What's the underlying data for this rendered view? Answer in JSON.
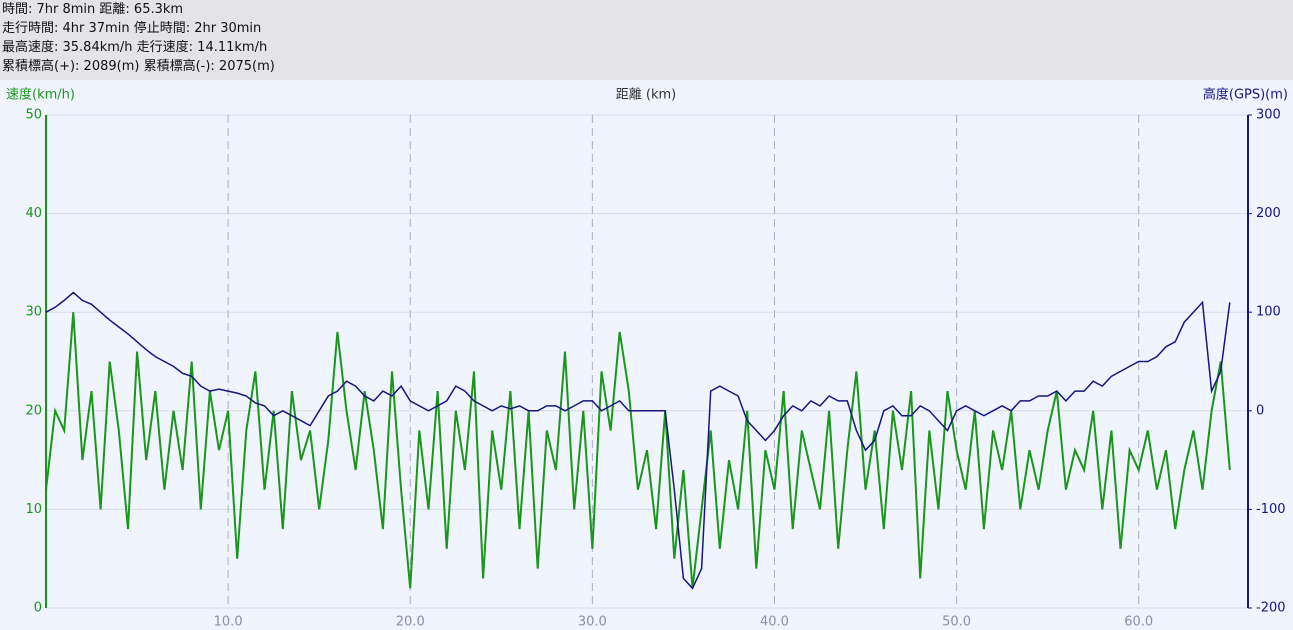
{
  "summary": [
    "時間: 7hr 8min 距離: 65.3km",
    "走行時間: 4hr 37min 停止時間: 2hr 30min",
    "最高速度: 35.84km/h 走行速度: 14.11km/h",
    "累積標高(+): 2089(m) 累積標高(-): 2075(m)"
  ],
  "chart_data": {
    "type": "line",
    "xlabel": "距離 (km)",
    "ylabel": "速度(km/h)",
    "y2label": "高度(GPS)(m)",
    "xlim": [
      0,
      66
    ],
    "xticks": [
      {
        "value": 10,
        "label": "10.0"
      },
      {
        "value": 20,
        "label": "20.0"
      },
      {
        "value": 30,
        "label": "30.0"
      },
      {
        "value": 40,
        "label": "40.0"
      },
      {
        "value": 50,
        "label": "50.0"
      },
      {
        "value": 60,
        "label": "60.0"
      }
    ],
    "ylim": [
      0,
      50
    ],
    "yticks": [
      0,
      10,
      20,
      30,
      40,
      50
    ],
    "y2lim": [
      -200,
      300
    ],
    "y2ticks": [
      -200,
      -100,
      0,
      100,
      200,
      300
    ],
    "grid": true,
    "x": [
      0,
      0.5,
      1,
      1.5,
      2,
      2.5,
      3,
      3.5,
      4,
      4.5,
      5,
      5.5,
      6,
      6.5,
      7,
      7.5,
      8,
      8.5,
      9,
      9.5,
      10,
      10.5,
      11,
      11.5,
      12,
      12.5,
      13,
      13.5,
      14,
      14.5,
      15,
      15.5,
      16,
      16.5,
      17,
      17.5,
      18,
      18.5,
      19,
      19.5,
      20,
      20.5,
      21,
      21.5,
      22,
      22.5,
      23,
      23.5,
      24,
      24.5,
      25,
      25.5,
      26,
      26.5,
      27,
      27.5,
      28,
      28.5,
      29,
      29.5,
      30,
      30.5,
      31,
      31.5,
      32,
      32.5,
      33,
      33.5,
      34,
      34.5,
      35,
      35.5,
      36,
      36.5,
      37,
      37.5,
      38,
      38.5,
      39,
      39.5,
      40,
      40.5,
      41,
      41.5,
      42,
      42.5,
      43,
      43.5,
      44,
      44.5,
      45,
      45.5,
      46,
      46.5,
      47,
      47.5,
      48,
      48.5,
      49,
      49.5,
      50,
      50.5,
      51,
      51.5,
      52,
      52.5,
      53,
      53.5,
      54,
      54.5,
      55,
      55.5,
      56,
      56.5,
      57,
      57.5,
      58,
      58.5,
      59,
      59.5,
      60,
      60.5,
      61,
      61.5,
      62,
      62.5,
      63,
      63.5,
      64,
      64.5,
      65
    ],
    "series": [
      {
        "name": "速度",
        "color": "#1a961a",
        "axis": "y",
        "values": [
          12,
          20,
          18,
          30,
          15,
          22,
          10,
          25,
          18,
          8,
          26,
          15,
          22,
          12,
          20,
          14,
          25,
          10,
          22,
          16,
          20,
          5,
          18,
          24,
          12,
          20,
          8,
          22,
          15,
          18,
          10,
          17,
          28,
          20,
          14,
          22,
          16,
          8,
          24,
          12,
          2,
          18,
          10,
          22,
          6,
          20,
          14,
          24,
          3,
          18,
          12,
          22,
          8,
          20,
          4,
          18,
          14,
          26,
          10,
          20,
          6,
          24,
          18,
          28,
          22,
          12,
          16,
          8,
          20,
          5,
          14,
          2,
          10,
          18,
          6,
          15,
          10,
          20,
          4,
          16,
          12,
          22,
          8,
          18,
          14,
          10,
          20,
          6,
          16,
          24,
          12,
          18,
          8,
          20,
          14,
          22,
          3,
          18,
          10,
          22,
          16,
          12,
          20,
          8,
          18,
          14,
          20,
          10,
          16,
          12,
          18,
          22,
          12,
          16,
          14,
          20,
          10,
          18,
          6,
          16,
          14,
          18,
          12,
          16,
          8,
          14,
          18,
          12,
          20,
          25,
          14
        ]
      },
      {
        "name": "高度",
        "color": "#16167e",
        "axis": "y2",
        "values": [
          100,
          105,
          112,
          120,
          112,
          108,
          100,
          92,
          85,
          78,
          70,
          62,
          55,
          50,
          45,
          38,
          35,
          25,
          20,
          22,
          20,
          18,
          15,
          8,
          5,
          -5,
          0,
          -5,
          -10,
          -15,
          0,
          15,
          20,
          30,
          25,
          15,
          10,
          20,
          15,
          25,
          10,
          5,
          0,
          5,
          10,
          25,
          20,
          10,
          5,
          0,
          5,
          2,
          5,
          0,
          0,
          5,
          5,
          0,
          5,
          10,
          10,
          0,
          5,
          10,
          0,
          0,
          0,
          0,
          0,
          -80,
          -170,
          -180,
          -160,
          20,
          25,
          20,
          15,
          -10,
          -20,
          -30,
          -20,
          -5,
          5,
          0,
          10,
          5,
          15,
          10,
          10,
          -20,
          -40,
          -30,
          0,
          5,
          -5,
          -5,
          5,
          0,
          -10,
          -20,
          0,
          5,
          0,
          -5,
          0,
          5,
          0,
          10,
          10,
          15,
          15,
          20,
          10,
          20,
          20,
          30,
          25,
          35,
          40,
          45,
          50,
          50,
          55,
          65,
          70,
          90,
          100,
          110,
          20,
          40,
          110
        ]
      }
    ]
  }
}
